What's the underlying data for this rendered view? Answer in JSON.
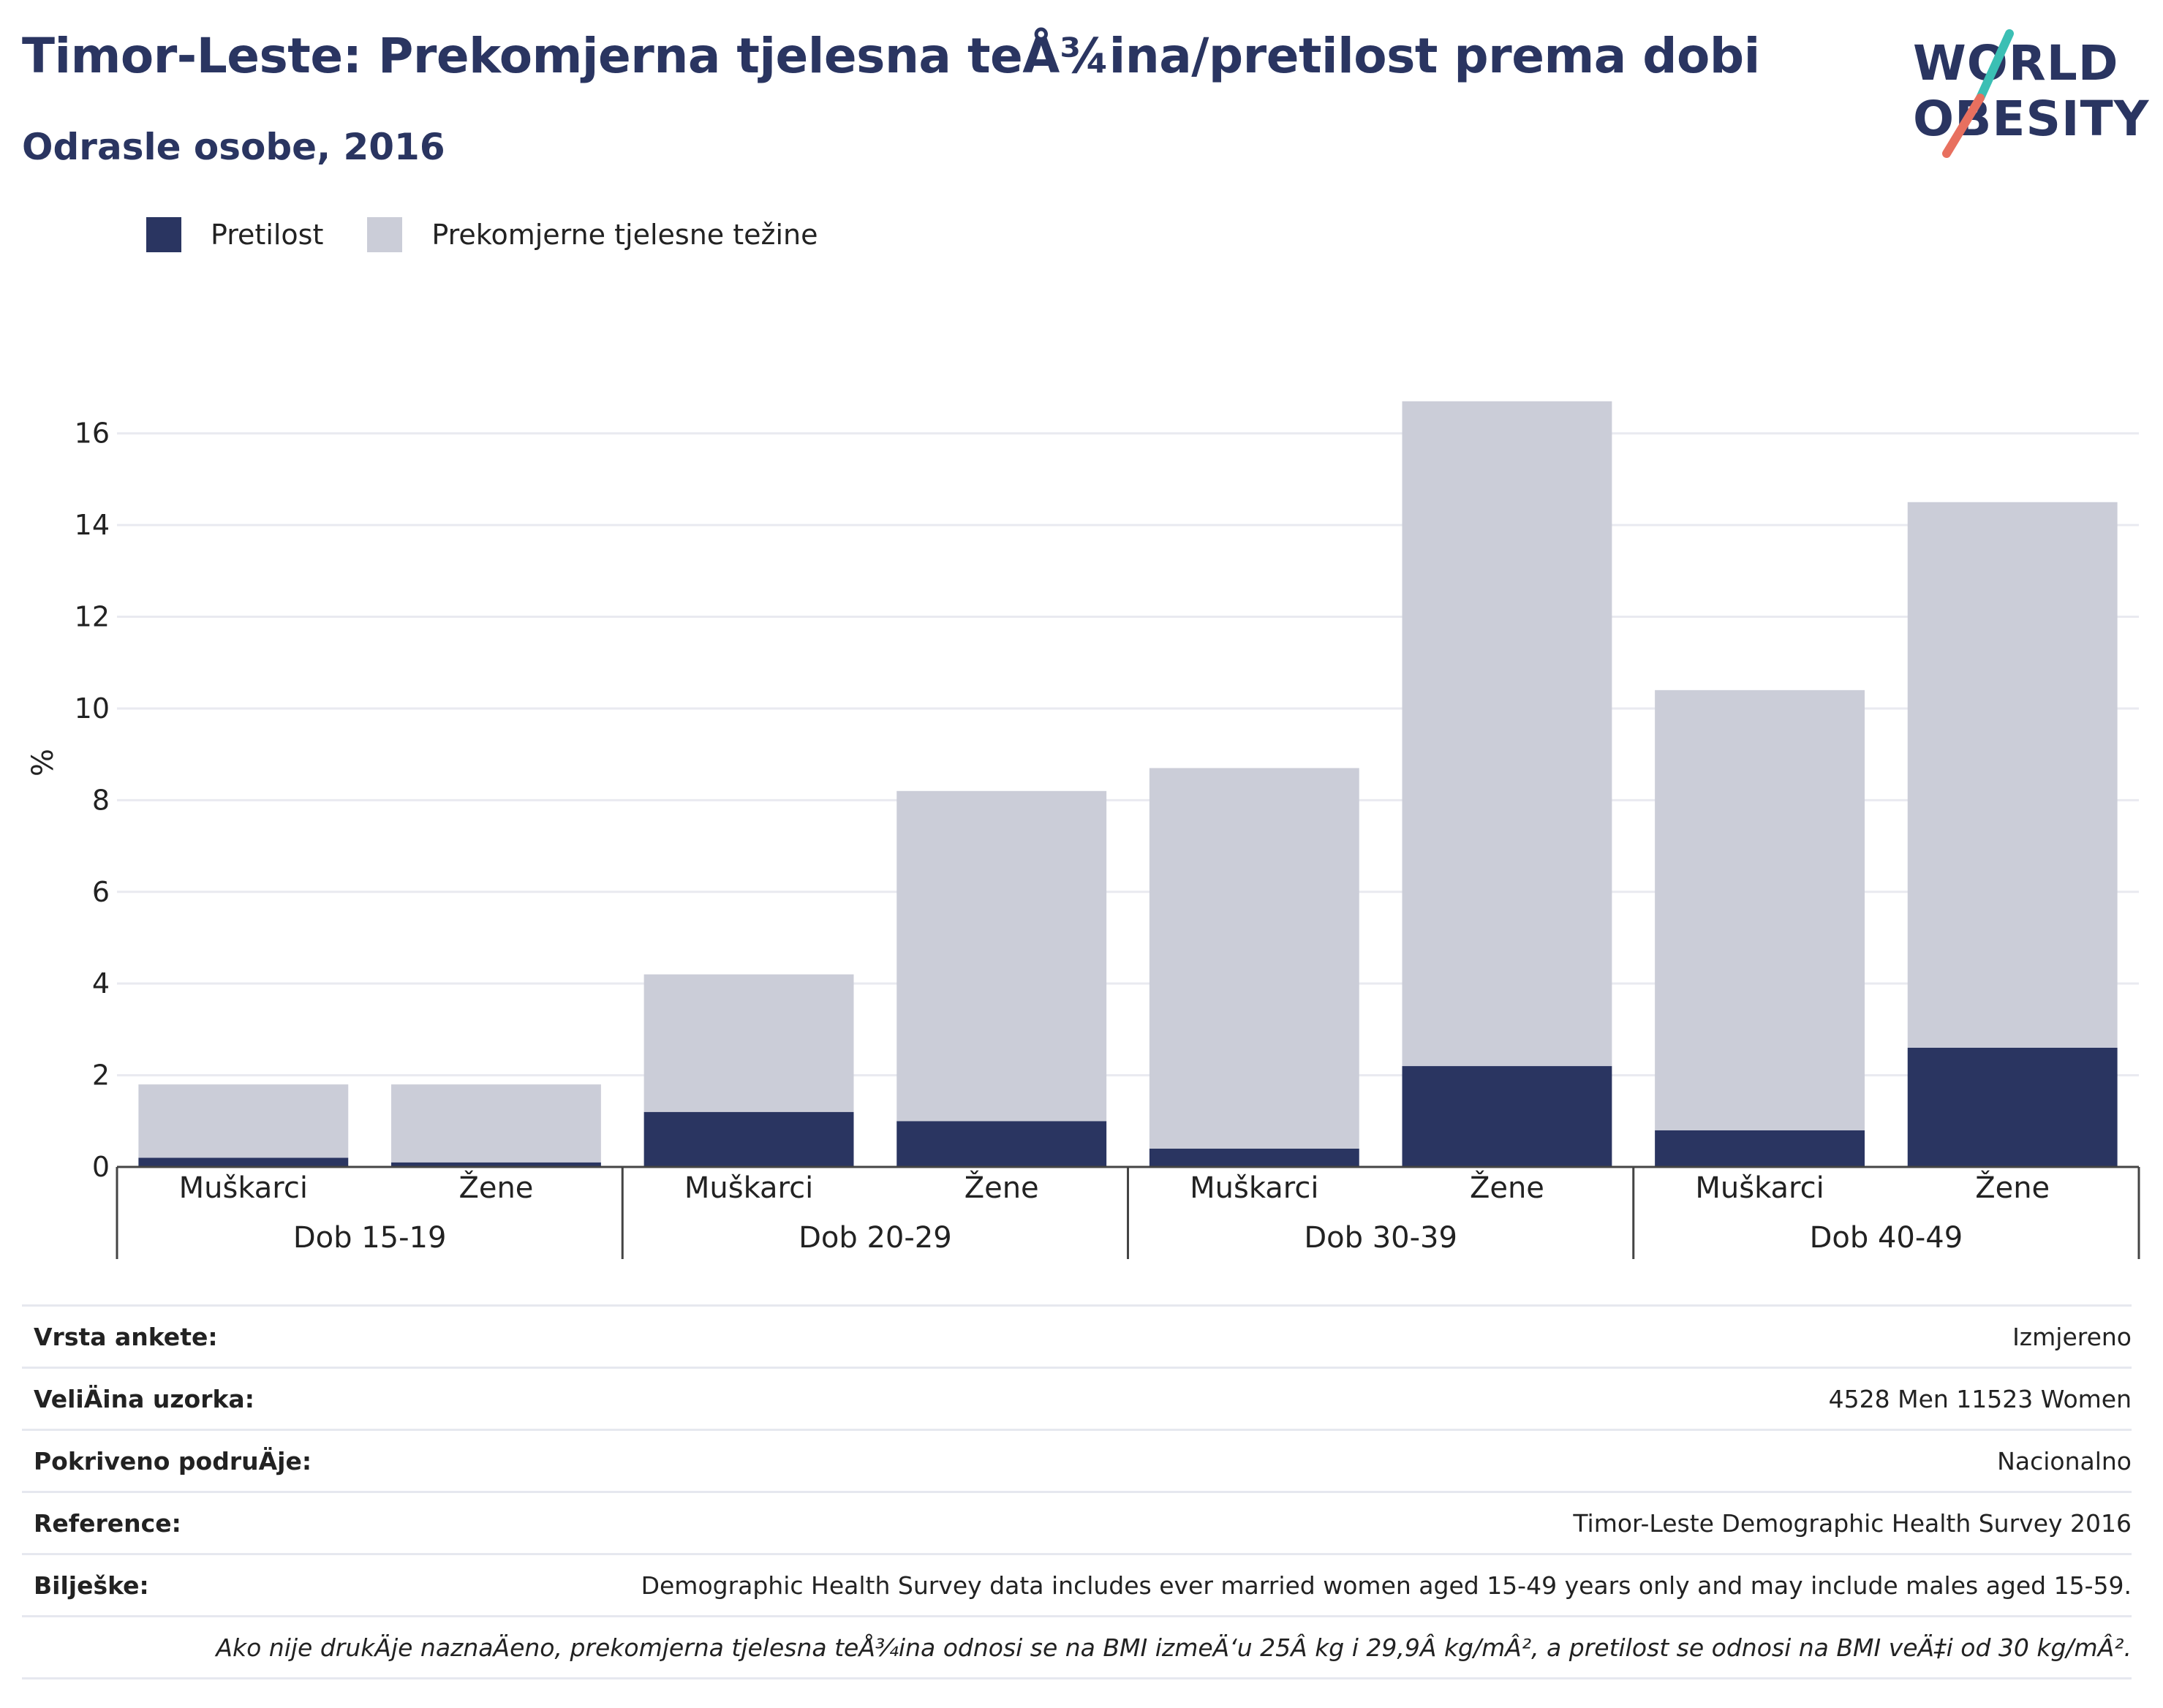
{
  "header": {
    "title": "Timor-Leste: Prekomjerna tjelesna teÅ¾ina/pretilost prema dobi",
    "subtitle": "Odrasle osobe, 2016"
  },
  "logo": {
    "line1": "WORLD",
    "line2": "OBESITY",
    "accent_teal": "#3bbfb4",
    "accent_coral": "#e8705f"
  },
  "colors": {
    "obesity": "#2a3561",
    "overweight": "#cbcdd8",
    "grid": "#e9eaf0",
    "axis": "#444444"
  },
  "chart_data": {
    "type": "bar",
    "stacked": true,
    "ylabel": "%",
    "ylim": [
      0,
      17
    ],
    "yticks": [
      0,
      2,
      4,
      6,
      8,
      10,
      12,
      14,
      16
    ],
    "grid": true,
    "legend_position": "top-left",
    "groups": [
      {
        "label": "Dob 15-19",
        "categories": [
          "Muškarci",
          "Žene"
        ]
      },
      {
        "label": "Dob 20-29",
        "categories": [
          "Muškarci",
          "Žene"
        ]
      },
      {
        "label": "Dob 30-39",
        "categories": [
          "Muškarci",
          "Žene"
        ]
      },
      {
        "label": "Dob 40-49",
        "categories": [
          "Muškarci",
          "Žene"
        ]
      }
    ],
    "series": [
      {
        "name": "Pretilost",
        "values": [
          0.2,
          0.1,
          1.2,
          1.0,
          0.4,
          2.2,
          0.8,
          2.6
        ]
      },
      {
        "name": "Prekomjerne tjelesne težine",
        "values": [
          1.6,
          1.7,
          3.0,
          7.2,
          8.3,
          14.5,
          9.6,
          11.9
        ]
      }
    ]
  },
  "info": {
    "rows": [
      {
        "key": "Vrsta ankete:",
        "value": "Izmjereno"
      },
      {
        "key": "VeliÄ\bina uzorka:",
        "value": "4528 Men 11523 Women"
      },
      {
        "key": "Pokriveno podruÄ\bje:",
        "value": "Nacionalno"
      },
      {
        "key": "Reference:",
        "value": "Timor-Leste Demographic Health Survey 2016"
      },
      {
        "key": "Bilješke:",
        "value": "Demographic Health Survey data includes ever married women aged 15-49 years only and may include males aged 15-59."
      }
    ],
    "footnote": "Ako nije drukÄ\bje naznaÄ\beno, prekomjerna tjelesna teÅ¾ina odnosi se na BMI izmeÄ‘u 25Â kg i 29,9Â kg/mÂ², a pretilost se odnosi na BMI veÄ‡i od 30 kg/mÂ²."
  }
}
